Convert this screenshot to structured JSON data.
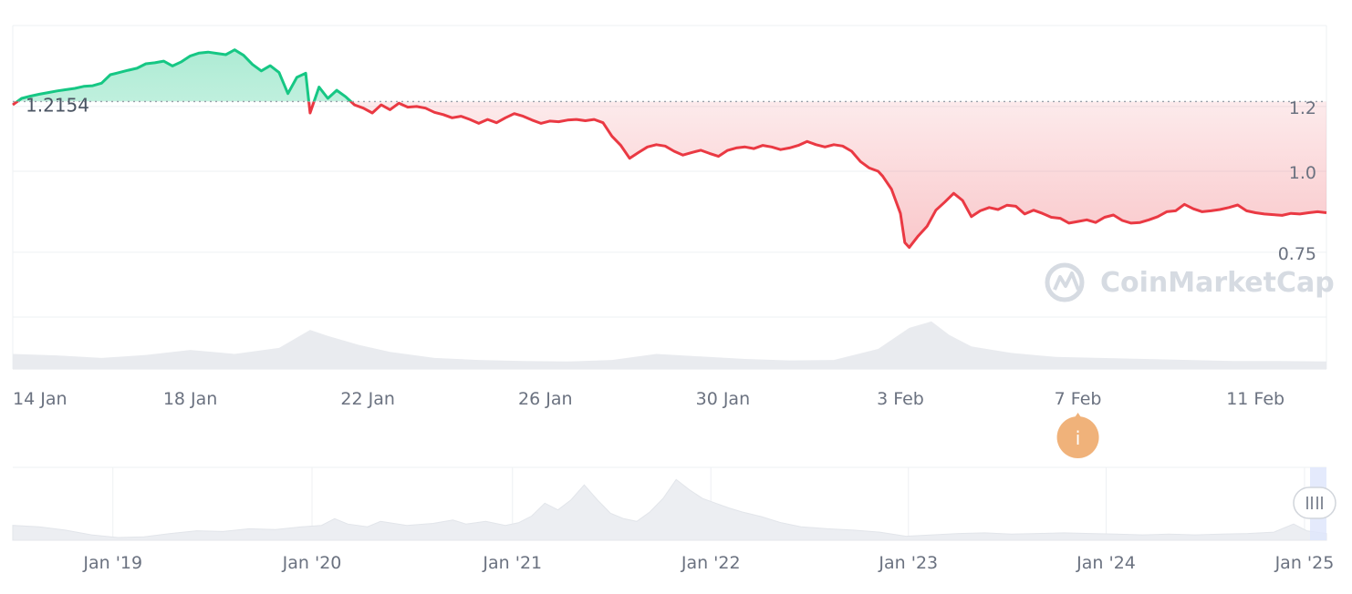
{
  "chart_data": {
    "type": "line",
    "title": "",
    "xlabel": "",
    "ylabel": "",
    "ylim": [
      0.55,
      1.45
    ],
    "baseline": {
      "value": 1.2154,
      "label": "1.2154"
    },
    "y_ticks": [
      {
        "value": 1.2,
        "label": "1.2"
      },
      {
        "value": 1.0,
        "label": "1.0"
      },
      {
        "value": 0.75,
        "label": "0.75"
      }
    ],
    "x_ticks": [
      {
        "day": 0,
        "label": "14 Jan"
      },
      {
        "day": 4,
        "label": "18 Jan"
      },
      {
        "day": 8,
        "label": "22 Jan"
      },
      {
        "day": 12,
        "label": "26 Jan"
      },
      {
        "day": 16,
        "label": "30 Jan"
      },
      {
        "day": 20,
        "label": "3 Feb"
      },
      {
        "day": 24,
        "label": "7 Feb"
      },
      {
        "day": 28,
        "label": "11 Feb"
      }
    ],
    "series": [
      {
        "points": [
          [
            0.0,
            1.205
          ],
          [
            0.2,
            1.225
          ],
          [
            0.4,
            1.232
          ],
          [
            0.6,
            1.238
          ],
          [
            0.8,
            1.243
          ],
          [
            1.0,
            1.248
          ],
          [
            1.2,
            1.252
          ],
          [
            1.4,
            1.256
          ],
          [
            1.6,
            1.262
          ],
          [
            1.8,
            1.264
          ],
          [
            2.0,
            1.272
          ],
          [
            2.2,
            1.298
          ],
          [
            2.4,
            1.305
          ],
          [
            2.6,
            1.312
          ],
          [
            2.8,
            1.318
          ],
          [
            3.0,
            1.332
          ],
          [
            3.2,
            1.335
          ],
          [
            3.4,
            1.34
          ],
          [
            3.6,
            1.325
          ],
          [
            3.8,
            1.338
          ],
          [
            4.0,
            1.356
          ],
          [
            4.2,
            1.365
          ],
          [
            4.4,
            1.368
          ],
          [
            4.6,
            1.364
          ],
          [
            4.8,
            1.36
          ],
          [
            5.0,
            1.375
          ],
          [
            5.2,
            1.358
          ],
          [
            5.4,
            1.33
          ],
          [
            5.6,
            1.31
          ],
          [
            5.8,
            1.326
          ],
          [
            6.0,
            1.305
          ],
          [
            6.2,
            1.24
          ],
          [
            6.4,
            1.29
          ],
          [
            6.6,
            1.303
          ],
          [
            6.7,
            1.18
          ],
          [
            6.9,
            1.26
          ],
          [
            7.1,
            1.225
          ],
          [
            7.3,
            1.25
          ],
          [
            7.5,
            1.23
          ],
          [
            7.7,
            1.205
          ],
          [
            7.9,
            1.195
          ],
          [
            8.1,
            1.18
          ],
          [
            8.3,
            1.205
          ],
          [
            8.5,
            1.19
          ],
          [
            8.7,
            1.21
          ],
          [
            8.9,
            1.198
          ],
          [
            9.1,
            1.2
          ],
          [
            9.3,
            1.195
          ],
          [
            9.5,
            1.182
          ],
          [
            9.7,
            1.175
          ],
          [
            9.9,
            1.165
          ],
          [
            10.1,
            1.17
          ],
          [
            10.3,
            1.16
          ],
          [
            10.5,
            1.148
          ],
          [
            10.7,
            1.16
          ],
          [
            10.9,
            1.15
          ],
          [
            11.1,
            1.165
          ],
          [
            11.3,
            1.178
          ],
          [
            11.5,
            1.17
          ],
          [
            11.7,
            1.158
          ],
          [
            11.9,
            1.148
          ],
          [
            12.1,
            1.155
          ],
          [
            12.3,
            1.153
          ],
          [
            12.5,
            1.158
          ],
          [
            12.7,
            1.16
          ],
          [
            12.9,
            1.156
          ],
          [
            13.1,
            1.16
          ],
          [
            13.3,
            1.15
          ],
          [
            13.5,
            1.108
          ],
          [
            13.7,
            1.08
          ],
          [
            13.9,
            1.04
          ],
          [
            14.1,
            1.058
          ],
          [
            14.3,
            1.075
          ],
          [
            14.5,
            1.082
          ],
          [
            14.7,
            1.078
          ],
          [
            14.9,
            1.062
          ],
          [
            15.1,
            1.05
          ],
          [
            15.3,
            1.058
          ],
          [
            15.5,
            1.065
          ],
          [
            15.7,
            1.055
          ],
          [
            15.9,
            1.046
          ],
          [
            16.1,
            1.064
          ],
          [
            16.3,
            1.072
          ],
          [
            16.5,
            1.075
          ],
          [
            16.7,
            1.07
          ],
          [
            16.9,
            1.08
          ],
          [
            17.1,
            1.075
          ],
          [
            17.3,
            1.067
          ],
          [
            17.5,
            1.072
          ],
          [
            17.7,
            1.08
          ],
          [
            17.9,
            1.092
          ],
          [
            18.1,
            1.082
          ],
          [
            18.3,
            1.075
          ],
          [
            18.5,
            1.082
          ],
          [
            18.7,
            1.078
          ],
          [
            18.9,
            1.062
          ],
          [
            19.1,
            1.03
          ],
          [
            19.3,
            1.01
          ],
          [
            19.5,
            1.0
          ],
          [
            19.6,
            0.985
          ],
          [
            19.8,
            0.945
          ],
          [
            20.0,
            0.87
          ],
          [
            20.1,
            0.78
          ],
          [
            20.2,
            0.765
          ],
          [
            20.4,
            0.8
          ],
          [
            20.6,
            0.83
          ],
          [
            20.8,
            0.88
          ],
          [
            21.0,
            0.905
          ],
          [
            21.2,
            0.932
          ],
          [
            21.4,
            0.91
          ],
          [
            21.6,
            0.86
          ],
          [
            21.8,
            0.878
          ],
          [
            22.0,
            0.888
          ],
          [
            22.2,
            0.882
          ],
          [
            22.4,
            0.895
          ],
          [
            22.6,
            0.892
          ],
          [
            22.8,
            0.868
          ],
          [
            23.0,
            0.88
          ],
          [
            23.2,
            0.87
          ],
          [
            23.4,
            0.858
          ],
          [
            23.6,
            0.855
          ],
          [
            23.8,
            0.84
          ],
          [
            24.0,
            0.845
          ],
          [
            24.2,
            0.85
          ],
          [
            24.4,
            0.842
          ],
          [
            24.6,
            0.858
          ],
          [
            24.8,
            0.865
          ],
          [
            25.0,
            0.848
          ],
          [
            25.2,
            0.84
          ],
          [
            25.4,
            0.842
          ],
          [
            25.6,
            0.85
          ],
          [
            25.8,
            0.86
          ],
          [
            26.0,
            0.875
          ],
          [
            26.2,
            0.878
          ],
          [
            26.4,
            0.898
          ],
          [
            26.6,
            0.884
          ],
          [
            26.8,
            0.875
          ],
          [
            27.0,
            0.878
          ],
          [
            27.2,
            0.882
          ],
          [
            27.4,
            0.888
          ],
          [
            27.6,
            0.896
          ],
          [
            27.8,
            0.878
          ],
          [
            28.0,
            0.872
          ],
          [
            28.2,
            0.868
          ],
          [
            28.4,
            0.866
          ],
          [
            28.6,
            0.864
          ],
          [
            28.8,
            0.87
          ],
          [
            29.0,
            0.868
          ],
          [
            29.2,
            0.872
          ],
          [
            29.4,
            0.875
          ],
          [
            29.6,
            0.872
          ]
        ],
        "volume": [
          [
            0.0,
            0.3
          ],
          [
            1.0,
            0.27
          ],
          [
            2.0,
            0.22
          ],
          [
            3.0,
            0.28
          ],
          [
            4.0,
            0.38
          ],
          [
            5.0,
            0.3
          ],
          [
            6.0,
            0.42
          ],
          [
            6.7,
            0.78
          ],
          [
            7.1,
            0.66
          ],
          [
            7.8,
            0.48
          ],
          [
            8.5,
            0.34
          ],
          [
            9.5,
            0.22
          ],
          [
            10.5,
            0.18
          ],
          [
            11.5,
            0.16
          ],
          [
            12.5,
            0.15
          ],
          [
            13.5,
            0.18
          ],
          [
            14.5,
            0.3
          ],
          [
            15.5,
            0.25
          ],
          [
            16.5,
            0.2
          ],
          [
            17.5,
            0.17
          ],
          [
            18.5,
            0.18
          ],
          [
            19.5,
            0.4
          ],
          [
            20.2,
            0.82
          ],
          [
            20.7,
            0.95
          ],
          [
            21.1,
            0.68
          ],
          [
            21.6,
            0.45
          ],
          [
            22.5,
            0.32
          ],
          [
            23.5,
            0.24
          ],
          [
            24.5,
            0.22
          ],
          [
            25.5,
            0.2
          ],
          [
            26.5,
            0.18
          ],
          [
            27.5,
            0.16
          ],
          [
            28.5,
            0.16
          ],
          [
            29.6,
            0.15
          ]
        ],
        "up_color": "#16c784",
        "down_color": "#ea3943"
      }
    ],
    "overview": {
      "labels": [
        "Jan '19",
        "Jan '20",
        "Jan '21",
        "Jan '22",
        "Jan '23",
        "Jan '24",
        "Jan '25"
      ],
      "label_positions": [
        0.0762,
        0.2278,
        0.3804,
        0.5314,
        0.6818,
        0.8323,
        0.9833
      ],
      "area": [
        [
          0.0,
          0.22
        ],
        [
          0.02,
          0.2
        ],
        [
          0.04,
          0.15
        ],
        [
          0.06,
          0.08
        ],
        [
          0.08,
          0.04
        ],
        [
          0.1,
          0.05
        ],
        [
          0.12,
          0.1
        ],
        [
          0.14,
          0.14
        ],
        [
          0.16,
          0.13
        ],
        [
          0.18,
          0.17
        ],
        [
          0.2,
          0.16
        ],
        [
          0.22,
          0.2
        ],
        [
          0.235,
          0.22
        ],
        [
          0.245,
          0.32
        ],
        [
          0.255,
          0.24
        ],
        [
          0.27,
          0.2
        ],
        [
          0.28,
          0.28
        ],
        [
          0.3,
          0.22
        ],
        [
          0.32,
          0.25
        ],
        [
          0.335,
          0.3
        ],
        [
          0.345,
          0.24
        ],
        [
          0.36,
          0.28
        ],
        [
          0.375,
          0.22
        ],
        [
          0.385,
          0.26
        ],
        [
          0.395,
          0.36
        ],
        [
          0.405,
          0.55
        ],
        [
          0.415,
          0.45
        ],
        [
          0.425,
          0.6
        ],
        [
          0.435,
          0.82
        ],
        [
          0.445,
          0.6
        ],
        [
          0.455,
          0.4
        ],
        [
          0.465,
          0.32
        ],
        [
          0.475,
          0.28
        ],
        [
          0.485,
          0.42
        ],
        [
          0.495,
          0.62
        ],
        [
          0.505,
          0.9
        ],
        [
          0.515,
          0.75
        ],
        [
          0.525,
          0.62
        ],
        [
          0.535,
          0.55
        ],
        [
          0.545,
          0.48
        ],
        [
          0.555,
          0.42
        ],
        [
          0.57,
          0.35
        ],
        [
          0.585,
          0.26
        ],
        [
          0.6,
          0.2
        ],
        [
          0.62,
          0.17
        ],
        [
          0.64,
          0.15
        ],
        [
          0.66,
          0.12
        ],
        [
          0.68,
          0.06
        ],
        [
          0.7,
          0.08
        ],
        [
          0.72,
          0.1
        ],
        [
          0.74,
          0.11
        ],
        [
          0.76,
          0.09
        ],
        [
          0.78,
          0.1
        ],
        [
          0.8,
          0.11
        ],
        [
          0.82,
          0.1
        ],
        [
          0.84,
          0.09
        ],
        [
          0.86,
          0.08
        ],
        [
          0.88,
          0.09
        ],
        [
          0.9,
          0.08
        ],
        [
          0.92,
          0.09
        ],
        [
          0.94,
          0.1
        ],
        [
          0.96,
          0.12
        ],
        [
          0.975,
          0.24
        ],
        [
          0.985,
          0.14
        ],
        [
          1.0,
          0.1
        ]
      ]
    },
    "event_marker": {
      "day": 24,
      "label": "i",
      "color": "#f0b27a"
    },
    "watermark": "CoinMarketCap",
    "grid": true
  }
}
